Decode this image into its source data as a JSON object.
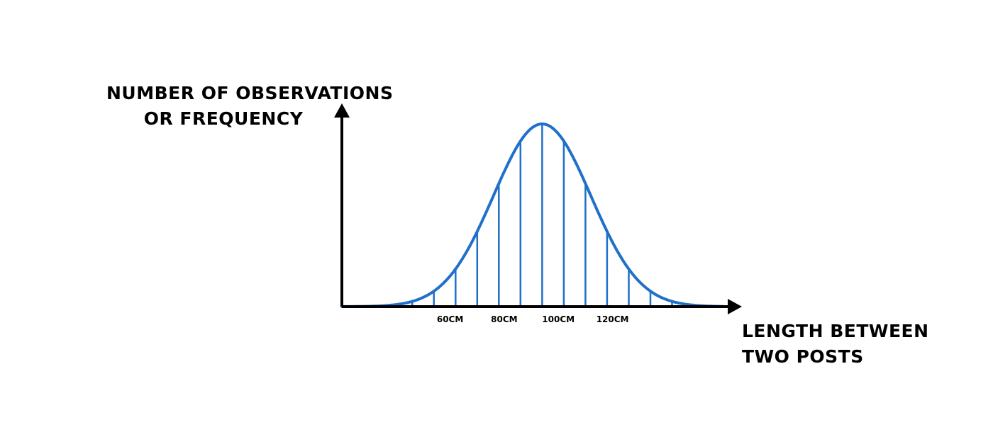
{
  "chart_data": {
    "type": "area",
    "ylabel_lines": [
      "NUMBER OF OBSERVATIONS",
      "OR FREQUENCY"
    ],
    "xlabel_lines": [
      "LENGTH BETWEEN",
      "TWO POSTS"
    ],
    "x_ticks": [
      {
        "value": 60,
        "label": "60CM"
      },
      {
        "value": 80,
        "label": "80CM"
      },
      {
        "value": 100,
        "label": "100CM"
      },
      {
        "value": 120,
        "label": "120CM"
      }
    ],
    "xlim": [
      20,
      161
    ],
    "curve": {
      "mean": 94,
      "sd": 18
    },
    "hatch_lines_x": [
      38,
      46,
      54,
      62,
      70,
      78,
      86,
      94,
      102,
      110,
      118,
      126,
      134,
      142,
      150
    ],
    "grid": false,
    "colors": {
      "curve": "#1f70c8",
      "axis": "#000000"
    }
  }
}
